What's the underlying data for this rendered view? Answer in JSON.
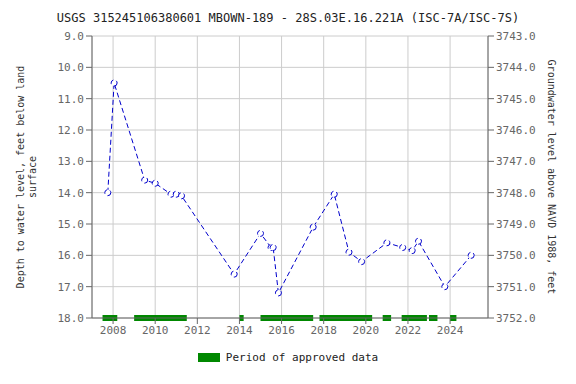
{
  "chart_data": {
    "type": "line",
    "title": "USGS 315245106380601 MBOWN-189 - 28S.03E.16.221A (ISC-7A/ISC-7S)",
    "y_label": "Depth to water level, feet below land\nsurface",
    "y2_label": "Groundwater level above NAVD 1988, feet",
    "x": [
      2007.75,
      2008.05,
      2009.5,
      2010.0,
      2010.75,
      2011.0,
      2011.25,
      2013.75,
      2015.0,
      2015.5,
      2015.6,
      2015.85,
      2017.5,
      2018.5,
      2019.2,
      2019.8,
      2021.0,
      2021.75,
      2022.2,
      2022.5,
      2023.75,
      2025.0
    ],
    "series": [
      {
        "values": [
          14.0,
          10.5,
          13.6,
          13.7,
          14.05,
          14.05,
          14.1,
          16.6,
          15.3,
          15.75,
          15.75,
          17.2,
          15.1,
          14.05,
          15.9,
          16.2,
          15.6,
          15.75,
          15.85,
          15.55,
          17.0,
          16.0
        ],
        "color": "#0000cc",
        "line_style": "dashed",
        "marker": "circle"
      }
    ],
    "periods": {
      "name": "Period of approved data",
      "color": "#008800",
      "y": 18.0,
      "ranges": [
        [
          2007.5,
          2008.2
        ],
        [
          2009.0,
          2011.5
        ],
        [
          2014.0,
          2014.2
        ],
        [
          2015.0,
          2017.5
        ],
        [
          2017.8,
          2020.3
        ],
        [
          2020.8,
          2021.2
        ],
        [
          2021.7,
          2022.9
        ],
        [
          2023.0,
          2023.4
        ],
        [
          2024.0,
          2024.3
        ]
      ]
    },
    "xlim": [
      2007.0,
      2025.8
    ],
    "xticks": [
      2008,
      2010,
      2012,
      2014,
      2016,
      2018,
      2020,
      2022,
      2024
    ],
    "ylim": [
      18.0,
      9.0
    ],
    "yticks": [
      {
        "value": 9.0,
        "label": "9.0"
      },
      {
        "value": 10.0,
        "label": "10.0"
      },
      {
        "value": 11.0,
        "label": "11.0"
      },
      {
        "value": 12.0,
        "label": "12.0"
      },
      {
        "value": 13.0,
        "label": "13.0"
      },
      {
        "value": 14.0,
        "label": "14.0"
      },
      {
        "value": 15.0,
        "label": "15.0"
      },
      {
        "value": 16.0,
        "label": "16.0"
      },
      {
        "value": 17.0,
        "label": "17.0"
      },
      {
        "value": 18.0,
        "label": "18.0"
      }
    ],
    "y2lim": [
      3752.0,
      3743.0
    ],
    "y2ticks": [
      {
        "value": 3752.0,
        "label": "3752.0"
      },
      {
        "value": 3751.0,
        "label": "3751.0"
      },
      {
        "value": 3750.0,
        "label": "3750.0"
      },
      {
        "value": 3749.0,
        "label": "3749.0"
      },
      {
        "value": 3748.0,
        "label": "3748.0"
      },
      {
        "value": 3747.0,
        "label": "3747.0"
      },
      {
        "value": 3746.0,
        "label": "3746.0"
      },
      {
        "value": 3745.0,
        "label": "3745.0"
      },
      {
        "value": 3744.0,
        "label": "3744.0"
      },
      {
        "value": 3743.0,
        "label": "3743.0"
      }
    ],
    "grid": true
  }
}
